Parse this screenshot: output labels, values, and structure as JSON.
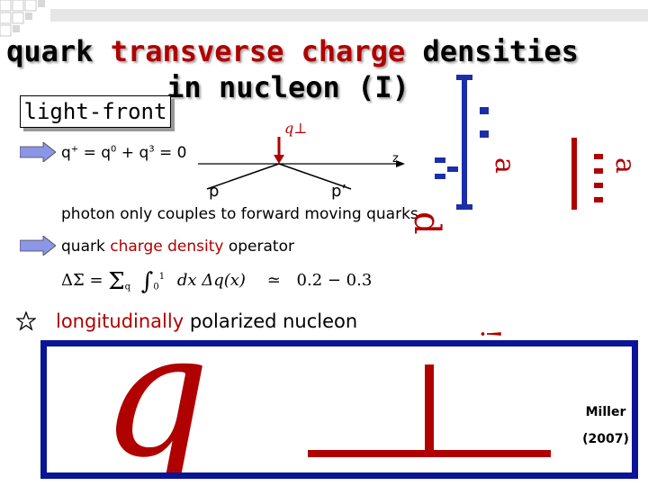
{
  "title": {
    "word1": "quark ",
    "word2": "transverse charge ",
    "word3": "densities",
    "line2": "in nucleon (I)"
  },
  "frame_label": "light-front",
  "kinematics": {
    "qplus_q": "q",
    "qplus_plus": "+",
    "qplus_eq1": " = q",
    "qplus_sup0": "0",
    "qplus_plus2": " + q",
    "qplus_sup3": "3",
    "qplus_eq2": " = 0",
    "q_perp_label": "q⊥",
    "z_label": "z",
    "p_label": "p",
    "p_prime_label": "p’"
  },
  "bullets": {
    "photon": "photon only couples to forward moving quarks",
    "operator_prefix": "quark ",
    "operator_accent": "charge density",
    "operator_suffix": " operator"
  },
  "equation": {
    "lhs": "ΔΣ =",
    "sum": "Σ",
    "sum_sub": "q",
    "integral": "∫",
    "int_lower": "0",
    "int_upper": "1",
    "integrand": "dx Δq(x)",
    "approx": "≃",
    "value": "0.2 − 0.3"
  },
  "longitudinal": {
    "accent": "longitudinally",
    "rest": " polarized nucleon"
  },
  "panel_formula": {
    "q": "q",
    "perp": "⊥"
  },
  "side_formula": {
    "d": "d",
    "a": "a",
    "exclaim": "!"
  },
  "citation": {
    "author": "Miller",
    "year": "(2007)"
  },
  "colors": {
    "title_red": "#b00000",
    "panel_blue": "#0a1496",
    "arrow_blue": "#8c96e6"
  },
  "icons": {
    "bullet": "arrow-right-icon",
    "star": "star-outline-icon",
    "corner": "square-pattern-icon"
  }
}
